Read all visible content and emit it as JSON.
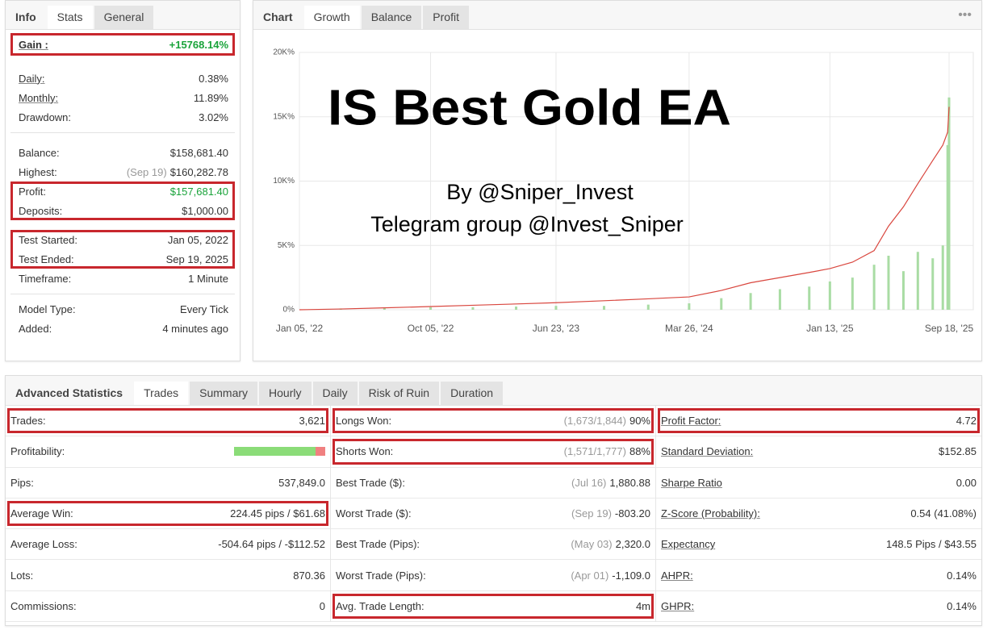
{
  "info_panel": {
    "tabs": [
      "Info",
      "Stats",
      "General"
    ],
    "active": 1,
    "groups": [
      {
        "highlight": true,
        "rows": [
          {
            "label": "Gain :",
            "value": "+15768.14%",
            "bold": true,
            "underline": true,
            "positive": true
          }
        ]
      },
      {
        "divider": true,
        "rows": [
          {
            "label": "Daily:",
            "value": "0.38%",
            "underline": true
          },
          {
            "label": "Monthly:",
            "value": "11.89%",
            "underline": true
          },
          {
            "label": "Drawdown:",
            "value": "3.02%"
          }
        ]
      },
      {
        "rows": [
          {
            "label": "Balance:",
            "value": "$158,681.40"
          },
          {
            "label": "Highest:",
            "note": "(Sep 19)",
            "value": "$160,282.78"
          }
        ]
      },
      {
        "highlight": true,
        "rows": [
          {
            "label": "Profit:",
            "value": "$157,681.40",
            "positive": true
          },
          {
            "label": "Deposits:",
            "value": "$1,000.00"
          }
        ]
      },
      {
        "highlight": true,
        "rows": [
          {
            "label": "Test Started:",
            "value": "Jan 05, 2022"
          },
          {
            "label": "Test Ended:",
            "value": "Sep 19, 2025"
          }
        ]
      },
      {
        "divider": true,
        "rows": [
          {
            "label": "Timeframe:",
            "value": "1 Minute"
          }
        ]
      },
      {
        "rows": [
          {
            "label": "Model Type:",
            "value": "Every Tick"
          },
          {
            "label": "Added:",
            "value": "4 minutes ago"
          }
        ]
      }
    ]
  },
  "chart_panel": {
    "tabs": [
      "Chart",
      "Growth",
      "Balance",
      "Profit"
    ],
    "active": 1,
    "menu": "•••",
    "overlay": {
      "title": "IS Best Gold EA",
      "line1": "By @Sniper_Invest",
      "line2": "Telegram group @Invest_Sniper"
    }
  },
  "chart_data": {
    "type": "line",
    "x": [
      "2022-01-05",
      "2022-04-01",
      "2022-07-01",
      "2022-10-05",
      "2023-01-01",
      "2023-04-01",
      "2023-06-23",
      "2023-10-01",
      "2024-01-01",
      "2024-03-26",
      "2024-06-01",
      "2024-08-01",
      "2024-10-01",
      "2024-12-01",
      "2025-01-13",
      "2025-03-01",
      "2025-04-15",
      "2025-05-15",
      "2025-06-15",
      "2025-07-15",
      "2025-08-15",
      "2025-09-05",
      "2025-09-15",
      "2025-09-18"
    ],
    "series": [
      {
        "type": "bar",
        "color": "#a9dca4",
        "values": [
          0,
          100,
          150,
          200,
          200,
          250,
          300,
          300,
          400,
          500,
          900,
          1300,
          1600,
          1800,
          2200,
          2500,
          3500,
          4200,
          3000,
          4500,
          4000,
          5000,
          12800,
          16500
        ]
      },
      {
        "type": "line",
        "color": "#d9463e",
        "values": [
          0,
          60,
          150,
          250,
          350,
          450,
          550,
          700,
          850,
          1000,
          1500,
          2100,
          2500,
          2900,
          3200,
          3700,
          4600,
          6500,
          8000,
          9800,
          11600,
          12800,
          13800,
          15768.14
        ]
      }
    ],
    "xlim": [
      "2022-01-05",
      "2025-09-18"
    ],
    "xticks": [
      {
        "value": "2022-01-05",
        "label": "Jan 05, '22"
      },
      {
        "value": "2022-10-05",
        "label": "Oct 05, '22"
      },
      {
        "value": "2023-06-23",
        "label": "Jun 23, '23"
      },
      {
        "value": "2024-03-26",
        "label": "Mar 26, '24"
      },
      {
        "value": "2025-01-13",
        "label": "Jan 13, '25"
      },
      {
        "value": "2025-09-18",
        "label": "Sep 18, '25"
      }
    ],
    "ylim": [
      0,
      20000
    ],
    "yticks": [
      {
        "value": 0,
        "label": "0%"
      },
      {
        "value": 5000,
        "label": "5K%"
      },
      {
        "value": 10000,
        "label": "10K%"
      },
      {
        "value": 15000,
        "label": "15K%"
      },
      {
        "value": 20000,
        "label": "20K%"
      }
    ],
    "grid": true
  },
  "advanced_panel": {
    "tabs": [
      "Advanced Statistics",
      "Trades",
      "Summary",
      "Hourly",
      "Daily",
      "Risk of Ruin",
      "Duration"
    ],
    "active": 1,
    "columns": [
      [
        {
          "label": "Trades:",
          "value": "3,621",
          "highlight": true
        },
        {
          "label": "Profitability:",
          "bar": {
            "values": [
              89.6,
              10.4
            ],
            "colors": [
              "#8bdc78",
              "#f08080"
            ]
          }
        },
        {
          "label": "Pips:",
          "value": "537,849.0"
        },
        {
          "label": "Average Win:",
          "value": "224.45 pips / $61.68",
          "highlight": true
        },
        {
          "label": "Average Loss:",
          "value": "-504.64 pips / -$112.52"
        },
        {
          "label": "Lots:",
          "value": "870.36"
        },
        {
          "label": "Commissions:",
          "value": "0"
        }
      ],
      [
        {
          "label": "Longs Won:",
          "note": "(1,673/1,844)",
          "value": "90%",
          "highlight": true
        },
        {
          "label": "Shorts Won:",
          "note": "(1,571/1,777)",
          "value": "88%",
          "highlight": true
        },
        {
          "label": "Best Trade ($):",
          "note": "(Jul 16)",
          "value": "1,880.88"
        },
        {
          "label": "Worst Trade ($):",
          "note": "(Sep 19)",
          "value": "-803.20"
        },
        {
          "label": "Best Trade (Pips):",
          "note": "(May 03)",
          "value": "2,320.0"
        },
        {
          "label": "Worst Trade (Pips):",
          "note": "(Apr 01)",
          "value": "-1,109.0"
        },
        {
          "label": "Avg. Trade Length:",
          "value": "4m",
          "highlight": true
        }
      ],
      [
        {
          "label": "Profit Factor:",
          "value": "4.72",
          "underline": true,
          "highlight": true
        },
        {
          "label": "Standard Deviation:",
          "value": "$152.85",
          "underline": true
        },
        {
          "label": "Sharpe Ratio",
          "value": "0.00",
          "underline": true
        },
        {
          "label": "Z-Score (Probability):",
          "value": "0.54 (41.08%)",
          "underline": true
        },
        {
          "label": "Expectancy",
          "value": "148.5 Pips / $43.55",
          "underline": true
        },
        {
          "label": "AHPR:",
          "value": "0.14%",
          "underline": true
        },
        {
          "label": "GHPR:",
          "value": "0.14%",
          "underline": true
        }
      ]
    ]
  }
}
